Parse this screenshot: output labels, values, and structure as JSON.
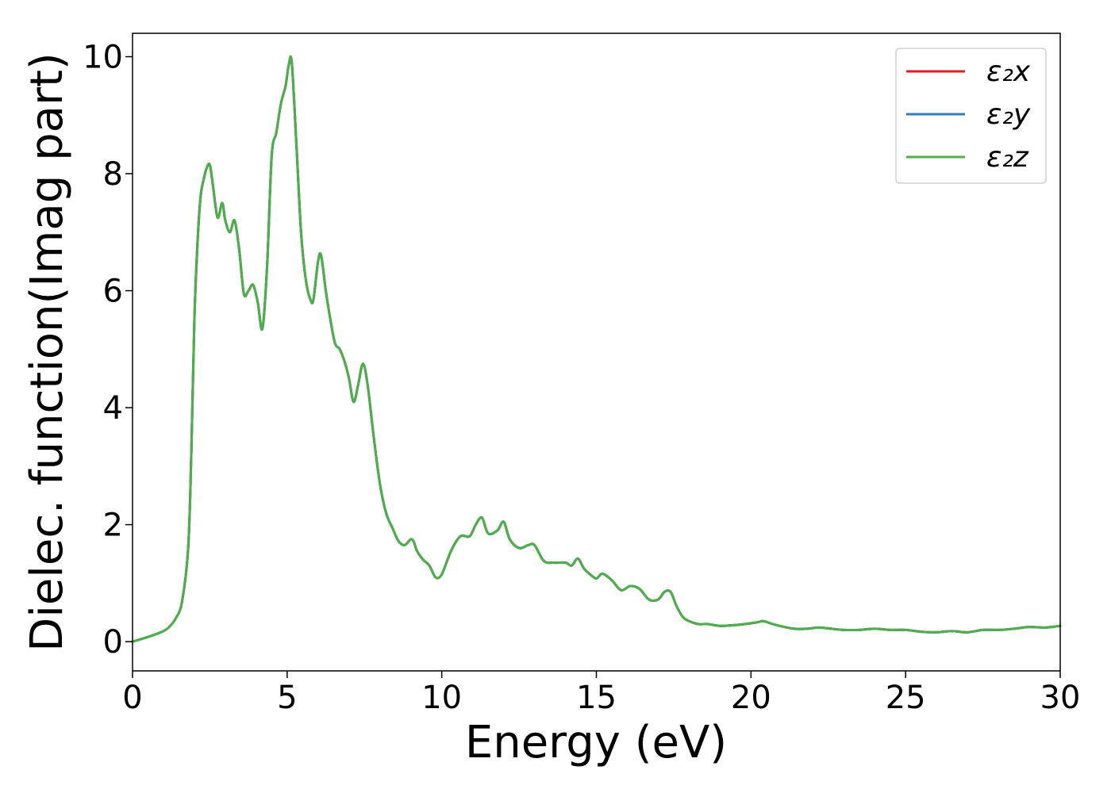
{
  "chart_data": {
    "type": "line",
    "xlabel": "Energy (eV)",
    "ylabel": "Dielec. function(Imag part)",
    "xlim": [
      0,
      30
    ],
    "ylim": [
      -0.5,
      10.4
    ],
    "xticks": [
      0,
      5,
      10,
      15,
      20,
      25,
      30
    ],
    "yticks": [
      0,
      2,
      4,
      6,
      8,
      10
    ],
    "xtick_labels": [
      "0",
      "5",
      "10",
      "15",
      "20",
      "25",
      "30"
    ],
    "ytick_labels": [
      "0",
      "2",
      "4",
      "6",
      "8",
      "10"
    ],
    "grid": false,
    "legend_position": "top-right",
    "x": [
      0,
      0.5,
      1.0,
      1.2,
      1.4,
      1.6,
      1.8,
      1.9,
      2.0,
      2.1,
      2.2,
      2.3,
      2.4,
      2.5,
      2.6,
      2.75,
      2.9,
      3.0,
      3.15,
      3.3,
      3.45,
      3.6,
      3.75,
      3.9,
      4.05,
      4.2,
      4.35,
      4.5,
      4.65,
      4.8,
      4.95,
      5.05,
      5.15,
      5.3,
      5.45,
      5.6,
      5.75,
      5.85,
      6.0,
      6.1,
      6.25,
      6.4,
      6.55,
      6.7,
      6.85,
      7.0,
      7.15,
      7.3,
      7.45,
      7.6,
      7.8,
      8.0,
      8.2,
      8.4,
      8.6,
      8.8,
      9.0,
      9.1,
      9.2,
      9.4,
      9.6,
      9.8,
      10.0,
      10.3,
      10.6,
      10.9,
      11.1,
      11.3,
      11.5,
      11.8,
      12.0,
      12.2,
      12.5,
      12.8,
      13.0,
      13.3,
      13.6,
      14.0,
      14.2,
      14.4,
      14.6,
      14.8,
      15.0,
      15.2,
      15.5,
      15.8,
      16.1,
      16.4,
      16.7,
      17.0,
      17.2,
      17.4,
      17.6,
      17.8,
      18.0,
      18.3,
      18.6,
      19.0,
      19.4,
      19.8,
      20.2,
      20.4,
      20.7,
      21.0,
      21.4,
      21.8,
      22.2,
      22.6,
      23.0,
      23.5,
      24.0,
      24.5,
      25.0,
      25.5,
      26.0,
      26.5,
      27.0,
      27.5,
      28.0,
      28.5,
      29.0,
      29.5,
      30.0
    ],
    "series": [
      {
        "name": "ε₂x",
        "color": "#e41a1c",
        "y": [
          0.0,
          0.08,
          0.18,
          0.26,
          0.4,
          0.68,
          1.6,
          3.2,
          5.5,
          6.8,
          7.6,
          7.9,
          8.1,
          8.15,
          7.8,
          7.25,
          7.5,
          7.2,
          7.0,
          7.2,
          6.7,
          5.95,
          6.0,
          6.1,
          5.8,
          5.35,
          6.4,
          8.3,
          8.7,
          9.2,
          9.5,
          9.85,
          9.9,
          8.5,
          7.0,
          6.2,
          5.85,
          5.85,
          6.5,
          6.6,
          6.0,
          5.5,
          5.1,
          5.0,
          4.8,
          4.5,
          4.1,
          4.4,
          4.75,
          4.4,
          3.5,
          2.7,
          2.2,
          1.95,
          1.72,
          1.65,
          1.75,
          1.7,
          1.55,
          1.4,
          1.3,
          1.1,
          1.15,
          1.55,
          1.8,
          1.8,
          2.0,
          2.12,
          1.85,
          1.9,
          2.05,
          1.75,
          1.6,
          1.65,
          1.65,
          1.38,
          1.35,
          1.35,
          1.3,
          1.42,
          1.25,
          1.15,
          1.08,
          1.16,
          1.05,
          0.88,
          0.95,
          0.9,
          0.72,
          0.72,
          0.85,
          0.85,
          0.6,
          0.42,
          0.35,
          0.3,
          0.3,
          0.27,
          0.28,
          0.3,
          0.33,
          0.35,
          0.3,
          0.26,
          0.22,
          0.22,
          0.24,
          0.22,
          0.2,
          0.2,
          0.22,
          0.2,
          0.2,
          0.17,
          0.16,
          0.18,
          0.16,
          0.2,
          0.2,
          0.22,
          0.25,
          0.24,
          0.27
        ]
      },
      {
        "name": "ε₂y",
        "color": "#377eb8",
        "y": [
          0.0,
          0.08,
          0.18,
          0.26,
          0.4,
          0.68,
          1.6,
          3.2,
          5.5,
          6.8,
          7.6,
          7.9,
          8.1,
          8.15,
          7.8,
          7.25,
          7.5,
          7.2,
          7.0,
          7.2,
          6.7,
          5.95,
          6.0,
          6.1,
          5.8,
          5.35,
          6.4,
          8.3,
          8.7,
          9.2,
          9.5,
          9.85,
          9.9,
          8.5,
          7.0,
          6.2,
          5.85,
          5.85,
          6.5,
          6.6,
          6.0,
          5.5,
          5.1,
          5.0,
          4.8,
          4.5,
          4.1,
          4.4,
          4.75,
          4.4,
          3.5,
          2.7,
          2.2,
          1.95,
          1.72,
          1.65,
          1.75,
          1.7,
          1.55,
          1.4,
          1.3,
          1.1,
          1.15,
          1.55,
          1.8,
          1.8,
          2.0,
          2.12,
          1.85,
          1.9,
          2.05,
          1.75,
          1.6,
          1.65,
          1.65,
          1.38,
          1.35,
          1.35,
          1.3,
          1.42,
          1.25,
          1.15,
          1.08,
          1.16,
          1.05,
          0.88,
          0.95,
          0.9,
          0.72,
          0.72,
          0.85,
          0.85,
          0.6,
          0.42,
          0.35,
          0.3,
          0.3,
          0.27,
          0.28,
          0.3,
          0.33,
          0.35,
          0.3,
          0.26,
          0.22,
          0.22,
          0.24,
          0.22,
          0.2,
          0.2,
          0.22,
          0.2,
          0.2,
          0.17,
          0.16,
          0.18,
          0.16,
          0.2,
          0.2,
          0.22,
          0.25,
          0.24,
          0.27
        ]
      },
      {
        "name": "ε₂z",
        "color": "#4daf4a",
        "y": [
          0.0,
          0.08,
          0.18,
          0.26,
          0.4,
          0.68,
          1.6,
          3.2,
          5.5,
          6.8,
          7.6,
          7.9,
          8.1,
          8.15,
          7.8,
          7.25,
          7.5,
          7.2,
          7.0,
          7.2,
          6.7,
          5.95,
          6.0,
          6.1,
          5.8,
          5.35,
          6.4,
          8.3,
          8.7,
          9.2,
          9.5,
          9.85,
          9.9,
          8.5,
          7.0,
          6.2,
          5.85,
          5.85,
          6.5,
          6.6,
          6.0,
          5.5,
          5.1,
          5.0,
          4.8,
          4.5,
          4.1,
          4.4,
          4.75,
          4.4,
          3.5,
          2.7,
          2.2,
          1.95,
          1.72,
          1.65,
          1.75,
          1.7,
          1.55,
          1.4,
          1.3,
          1.1,
          1.15,
          1.55,
          1.8,
          1.8,
          2.0,
          2.12,
          1.85,
          1.9,
          2.05,
          1.75,
          1.6,
          1.65,
          1.65,
          1.38,
          1.35,
          1.35,
          1.3,
          1.42,
          1.25,
          1.15,
          1.08,
          1.16,
          1.05,
          0.88,
          0.95,
          0.9,
          0.72,
          0.72,
          0.85,
          0.85,
          0.6,
          0.42,
          0.35,
          0.3,
          0.3,
          0.27,
          0.28,
          0.3,
          0.33,
          0.35,
          0.3,
          0.26,
          0.22,
          0.22,
          0.24,
          0.22,
          0.2,
          0.2,
          0.22,
          0.2,
          0.2,
          0.17,
          0.16,
          0.18,
          0.16,
          0.2,
          0.2,
          0.22,
          0.25,
          0.24,
          0.27
        ]
      }
    ]
  }
}
